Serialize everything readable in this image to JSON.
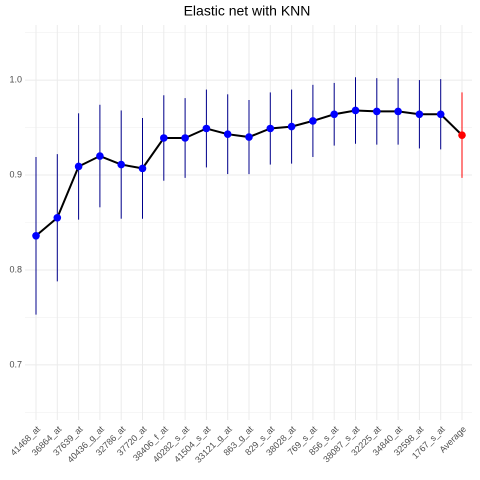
{
  "chart_data": {
    "type": "line",
    "title": "Elastic net with KNN",
    "categories": [
      "41468_at",
      "36864_at",
      "37639_at",
      "40436_g_at",
      "32786_at",
      "37720_at",
      "38406_f_at",
      "40282_s_at",
      "41504_s_at",
      "33121_g_at",
      "863_g_at",
      "829_s_at",
      "38028_at",
      "769_s_at",
      "856_s_at",
      "38087_s_at",
      "32225_at",
      "34840_at",
      "32598_at",
      "1767_s_at",
      "Average"
    ],
    "values": [
      0.836,
      0.855,
      0.909,
      0.92,
      0.911,
      0.907,
      0.939,
      0.939,
      0.949,
      0.943,
      0.94,
      0.949,
      0.951,
      0.957,
      0.964,
      0.968,
      0.967,
      0.967,
      0.964,
      0.964,
      0.942
    ],
    "errors": [
      0.083,
      0.067,
      0.056,
      0.054,
      0.057,
      0.053,
      0.045,
      0.042,
      0.041,
      0.042,
      0.039,
      0.038,
      0.039,
      0.038,
      0.033,
      0.035,
      0.035,
      0.035,
      0.036,
      0.037,
      0.045
    ],
    "line_color": "#000000",
    "error_color": "#00008b",
    "point_color": "#0000ff",
    "highlight_index": 20,
    "highlight_color": "#ff0000",
    "ylim": [
      0.642,
      1.058
    ],
    "yticks": [
      0.7,
      0.8,
      0.9,
      {
        "value": 1,
        "label": "1.0"
      }
    ],
    "minor_yticks": [
      0.65,
      0.75,
      0.85,
      0.95,
      1.05
    ],
    "grid": true
  }
}
